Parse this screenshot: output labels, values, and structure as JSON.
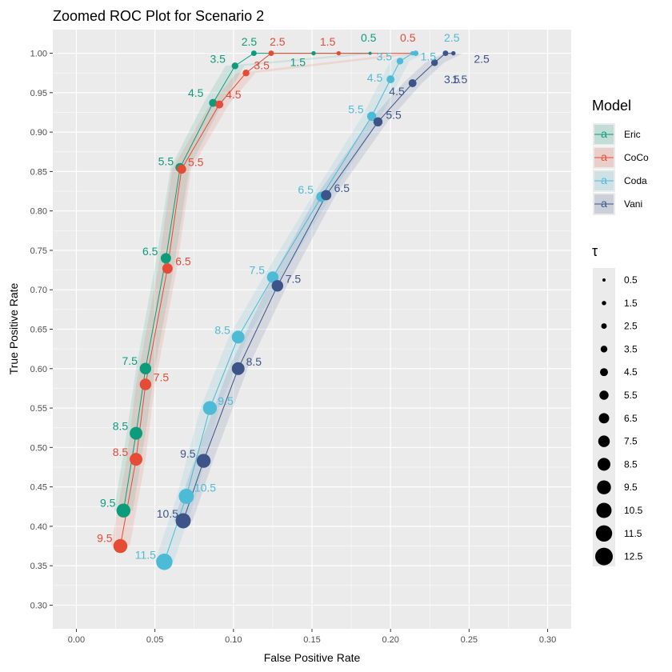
{
  "chart_data": {
    "type": "line",
    "title": "Zoomed ROC Plot for Scenario 2",
    "xlabel": "False Positive Rate",
    "ylabel": "True Positive Rate",
    "xlim": [
      -0.015,
      0.315
    ],
    "ylim": [
      0.27,
      1.03
    ],
    "x_ticks": [
      "0.00",
      "0.05",
      "0.10",
      "0.15",
      "0.20",
      "0.25",
      "0.30"
    ],
    "y_ticks": [
      "0.30",
      "0.35",
      "0.40",
      "0.45",
      "0.50",
      "0.55",
      "0.60",
      "0.65",
      "0.70",
      "0.75",
      "0.80",
      "0.85",
      "0.90",
      "0.95",
      "1.00"
    ],
    "grid": true,
    "legend_position": "right",
    "legend": {
      "model_title": "Model",
      "tau_title": "τ",
      "key_glyph": "a",
      "tau_values": [
        "0.5",
        "1.5",
        "2.5",
        "3.5",
        "4.5",
        "5.5",
        "6.5",
        "7.5",
        "8.5",
        "9.5",
        "10.5",
        "11.5",
        "12.5"
      ]
    },
    "series": [
      {
        "name": "Eric",
        "color": "#0c9c7c",
        "tau": [
          "0.5",
          "1.5",
          "2.5",
          "3.5",
          "4.5",
          "5.5",
          "6.5",
          "7.5",
          "8.5",
          "9.5"
        ],
        "x": [
          0.187,
          0.151,
          0.113,
          0.101,
          0.087,
          0.066,
          0.057,
          0.044,
          0.038,
          0.03
        ],
        "y": [
          1.0,
          1.0,
          1.0,
          0.984,
          0.937,
          0.855,
          0.74,
          0.6,
          0.518,
          0.42
        ]
      },
      {
        "name": "CoCo",
        "color": "#e64b35",
        "tau": [
          "0.5",
          "1.5",
          "2.5",
          "3.5",
          "4.5",
          "5.5",
          "6.5",
          "7.5",
          "8.5",
          "9.5"
        ],
        "x": [
          0.214,
          0.167,
          0.124,
          0.108,
          0.091,
          0.067,
          0.058,
          0.044,
          0.038,
          0.028
        ],
        "y": [
          1.0,
          1.0,
          1.0,
          0.975,
          0.935,
          0.853,
          0.727,
          0.58,
          0.485,
          0.375
        ]
      },
      {
        "name": "Coda",
        "color": "#4dbbd5",
        "tau": [
          "2.5",
          "1.5",
          "3.5",
          "4.5",
          "5.5",
          "6.5",
          "7.5",
          "8.5",
          "9.5",
          "10.5",
          "11.5"
        ],
        "x": [
          0.216,
          0.214,
          0.206,
          0.2,
          0.188,
          0.156,
          0.125,
          0.103,
          0.085,
          0.07,
          0.056
        ],
        "y": [
          1.0,
          1.0,
          0.99,
          0.967,
          0.92,
          0.818,
          0.716,
          0.64,
          0.55,
          0.438,
          0.355
        ]
      },
      {
        "name": "Vani",
        "color": "#3c5488",
        "tau": [
          "1.5",
          "2.5",
          "3.5",
          "4.5",
          "5.5",
          "6.5",
          "7.5",
          "8.5",
          "9.5",
          "10.5"
        ],
        "x": [
          0.24,
          0.235,
          0.228,
          0.214,
          0.192,
          0.159,
          0.128,
          0.103,
          0.081,
          0.068
        ],
        "y": [
          1.0,
          1.0,
          0.988,
          0.962,
          0.913,
          0.82,
          0.705,
          0.6,
          0.483,
          0.407
        ]
      }
    ],
    "annotations": [
      {
        "series": "Eric",
        "text": "0.5",
        "x": 0.186,
        "y": 1.02,
        "color": "#0c9c7c"
      },
      {
        "series": "Eric",
        "text": "1.5",
        "x": 0.141,
        "y": 0.989,
        "color": "#0c9c7c"
      },
      {
        "series": "Eric",
        "text": "2.5",
        "x": 0.11,
        "y": 1.015,
        "color": "#0c9c7c"
      },
      {
        "series": "Eric",
        "text": "3.5",
        "x": 0.09,
        "y": 0.993,
        "color": "#0c9c7c"
      },
      {
        "series": "Eric",
        "text": "4.5",
        "x": 0.076,
        "y": 0.95,
        "color": "#0c9c7c"
      },
      {
        "series": "Eric",
        "text": "5.5",
        "x": 0.057,
        "y": 0.863,
        "color": "#0c9c7c"
      },
      {
        "series": "Eric",
        "text": "6.5",
        "x": 0.047,
        "y": 0.749,
        "color": "#0c9c7c"
      },
      {
        "series": "Eric",
        "text": "7.5",
        "x": 0.034,
        "y": 0.61,
        "color": "#0c9c7c"
      },
      {
        "series": "Eric",
        "text": "8.5",
        "x": 0.028,
        "y": 0.527,
        "color": "#0c9c7c"
      },
      {
        "series": "Eric",
        "text": "9.5",
        "x": 0.02,
        "y": 0.43,
        "color": "#0c9c7c"
      },
      {
        "series": "CoCo",
        "text": "0.5",
        "x": 0.211,
        "y": 1.02,
        "color": "#e64b35"
      },
      {
        "series": "CoCo",
        "text": "1.5",
        "x": 0.16,
        "y": 1.015,
        "color": "#e64b35"
      },
      {
        "series": "CoCo",
        "text": "2.5",
        "x": 0.128,
        "y": 1.015,
        "color": "#e64b35"
      },
      {
        "series": "CoCo",
        "text": "3.5",
        "x": 0.118,
        "y": 0.985,
        "color": "#e64b35"
      },
      {
        "series": "CoCo",
        "text": "4.5",
        "x": 0.1,
        "y": 0.948,
        "color": "#e64b35"
      },
      {
        "series": "CoCo",
        "text": "5.5",
        "x": 0.076,
        "y": 0.862,
        "color": "#e64b35"
      },
      {
        "series": "CoCo",
        "text": "6.5",
        "x": 0.068,
        "y": 0.736,
        "color": "#e64b35"
      },
      {
        "series": "CoCo",
        "text": "7.5",
        "x": 0.054,
        "y": 0.589,
        "color": "#e64b35"
      },
      {
        "series": "CoCo",
        "text": "8.5",
        "x": 0.028,
        "y": 0.494,
        "color": "#e64b35"
      },
      {
        "series": "CoCo",
        "text": "9.5",
        "x": 0.018,
        "y": 0.385,
        "color": "#e64b35"
      },
      {
        "series": "Coda",
        "text": "2.5",
        "x": 0.239,
        "y": 1.02,
        "color": "#4dbbd5"
      },
      {
        "series": "Coda",
        "text": "1.5",
        "x": 0.224,
        "y": 0.996,
        "color": "#4dbbd5"
      },
      {
        "series": "Coda",
        "text": "3.5",
        "x": 0.196,
        "y": 0.996,
        "color": "#4dbbd5"
      },
      {
        "series": "Coda",
        "text": "4.5",
        "x": 0.19,
        "y": 0.969,
        "color": "#4dbbd5"
      },
      {
        "series": "Coda",
        "text": "5.5",
        "x": 0.178,
        "y": 0.929,
        "color": "#4dbbd5"
      },
      {
        "series": "Coda",
        "text": "6.5",
        "x": 0.146,
        "y": 0.827,
        "color": "#4dbbd5"
      },
      {
        "series": "Coda",
        "text": "7.5",
        "x": 0.115,
        "y": 0.725,
        "color": "#4dbbd5"
      },
      {
        "series": "Coda",
        "text": "8.5",
        "x": 0.093,
        "y": 0.649,
        "color": "#4dbbd5"
      },
      {
        "series": "Coda",
        "text": "9.5",
        "x": 0.095,
        "y": 0.559,
        "color": "#4dbbd5"
      },
      {
        "series": "Coda",
        "text": "10.5",
        "x": 0.082,
        "y": 0.449,
        "color": "#4dbbd5"
      },
      {
        "series": "Coda",
        "text": "11.5",
        "x": 0.044,
        "y": 0.364,
        "color": "#4dbbd5"
      },
      {
        "series": "Vani",
        "text": "2.5",
        "x": 0.258,
        "y": 0.993,
        "color": "#3c5488"
      },
      {
        "series": "Vani",
        "text": "1.5",
        "x": 0.244,
        "y": 0.967,
        "color": "#3c5488"
      },
      {
        "series": "Vani",
        "text": "3.5",
        "x": 0.239,
        "y": 0.967,
        "color": "#3c5488"
      },
      {
        "series": "Vani",
        "text": "4.5",
        "x": 0.204,
        "y": 0.952,
        "color": "#3c5488"
      },
      {
        "series": "Vani",
        "text": "5.5",
        "x": 0.202,
        "y": 0.922,
        "color": "#3c5488"
      },
      {
        "series": "Vani",
        "text": "6.5",
        "x": 0.169,
        "y": 0.829,
        "color": "#3c5488"
      },
      {
        "series": "Vani",
        "text": "7.5",
        "x": 0.138,
        "y": 0.714,
        "color": "#3c5488"
      },
      {
        "series": "Vani",
        "text": "8.5",
        "x": 0.113,
        "y": 0.609,
        "color": "#3c5488"
      },
      {
        "series": "Vani",
        "text": "9.5",
        "x": 0.071,
        "y": 0.492,
        "color": "#3c5488"
      },
      {
        "series": "Vani",
        "text": "10.5",
        "x": 0.058,
        "y": 0.416,
        "color": "#3c5488"
      }
    ]
  }
}
